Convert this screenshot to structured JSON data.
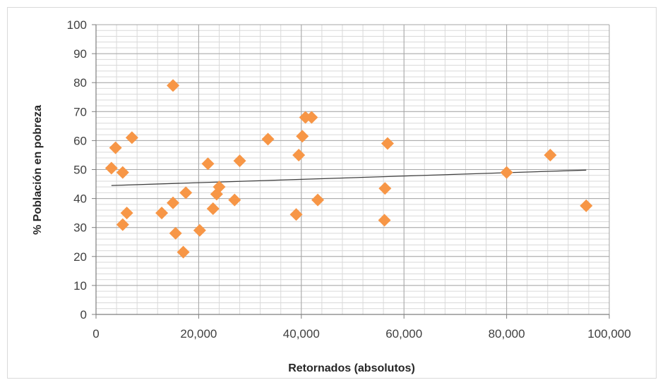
{
  "chart_data": {
    "type": "scatter",
    "title": "",
    "xlabel": "Retornados (absolutos)",
    "ylabel": "% Población en pobreza",
    "xlim": [
      0,
      100000
    ],
    "ylim": [
      0,
      100
    ],
    "x_ticks": [
      0,
      20000,
      40000,
      60000,
      80000,
      100000
    ],
    "x_tick_labels": [
      "0",
      "20,000",
      "40,000",
      "60,000",
      "80,000",
      "100,000"
    ],
    "y_ticks": [
      0,
      10,
      20,
      30,
      40,
      50,
      60,
      70,
      80,
      90,
      100
    ],
    "y_tick_labels": [
      "0",
      "10",
      "20",
      "30",
      "40",
      "50",
      "60",
      "70",
      "80",
      "90",
      "100"
    ],
    "grid": true,
    "marker_color": "#f79646",
    "marker_shape": "diamond",
    "trendline": {
      "type": "linear",
      "x": [
        3000,
        95500
      ],
      "y": [
        44.5,
        49.8
      ],
      "color": "#404040"
    },
    "points": [
      {
        "x": 3000,
        "y": 50.5
      },
      {
        "x": 3800,
        "y": 57.5
      },
      {
        "x": 5200,
        "y": 49
      },
      {
        "x": 5200,
        "y": 31
      },
      {
        "x": 6000,
        "y": 35
      },
      {
        "x": 7000,
        "y": 61
      },
      {
        "x": 12800,
        "y": 35
      },
      {
        "x": 15000,
        "y": 38.5
      },
      {
        "x": 15000,
        "y": 79
      },
      {
        "x": 15500,
        "y": 28
      },
      {
        "x": 17000,
        "y": 21.5
      },
      {
        "x": 17500,
        "y": 42
      },
      {
        "x": 20200,
        "y": 29
      },
      {
        "x": 21800,
        "y": 52
      },
      {
        "x": 22800,
        "y": 36.5
      },
      {
        "x": 23500,
        "y": 41.5
      },
      {
        "x": 24000,
        "y": 44
      },
      {
        "x": 27000,
        "y": 39.5
      },
      {
        "x": 28000,
        "y": 53
      },
      {
        "x": 33500,
        "y": 60.5
      },
      {
        "x": 39000,
        "y": 34.5
      },
      {
        "x": 39500,
        "y": 55
      },
      {
        "x": 40200,
        "y": 61.5
      },
      {
        "x": 40800,
        "y": 68
      },
      {
        "x": 42000,
        "y": 68
      },
      {
        "x": 43200,
        "y": 39.5
      },
      {
        "x": 56200,
        "y": 32.5
      },
      {
        "x": 56300,
        "y": 43.5
      },
      {
        "x": 56800,
        "y": 59
      },
      {
        "x": 80000,
        "y": 49
      },
      {
        "x": 88500,
        "y": 55
      },
      {
        "x": 95500,
        "y": 37.5
      }
    ]
  }
}
